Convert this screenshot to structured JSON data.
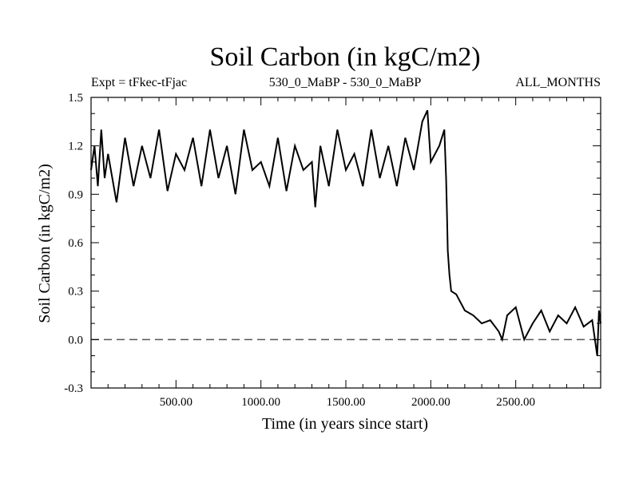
{
  "colors": {
    "line": "#000000",
    "axis": "#000000",
    "zero_line": "#555555",
    "background": "#ffffff"
  },
  "header": {
    "title": "Soil Carbon (in kgC/m2)",
    "expt_label": "Expt = tFkec-tFjac",
    "comparison_label": "530_0_MaBP - 530_0_MaBP",
    "months_label": "ALL_MONTHS"
  },
  "chart_data": {
    "type": "line",
    "title": "Soil Carbon (in kgC/m2)",
    "xlabel": "Time (in years since start)",
    "ylabel": "Soil Carbon (in kgC/m2)",
    "xlim": [
      0,
      3000
    ],
    "ylim": [
      -0.3,
      1.5
    ],
    "x_ticks": [
      500,
      1000,
      1500,
      2000,
      2500
    ],
    "x_tick_labels": [
      "500.00",
      "1000.00",
      "1500.00",
      "2000.00",
      "2500.00"
    ],
    "y_ticks": [
      -0.3,
      0.0,
      0.3,
      0.6,
      0.9,
      1.2,
      1.5
    ],
    "y_tick_labels": [
      "-0.3",
      "0.0",
      "0.3",
      "0.6",
      "0.9",
      "1.2",
      "1.5"
    ],
    "reference_line": {
      "y": 0.0,
      "style": "dashed"
    },
    "grid": false,
    "series": [
      {
        "x": [
          0,
          20,
          40,
          60,
          80,
          100,
          150,
          200,
          250,
          300,
          350,
          400,
          450,
          500,
          550,
          600,
          650,
          700,
          750,
          800,
          850,
          900,
          950,
          1000,
          1050,
          1100,
          1150,
          1200,
          1250,
          1300,
          1320,
          1350,
          1400,
          1450,
          1500,
          1550,
          1600,
          1650,
          1700,
          1750,
          1800,
          1850,
          1900,
          1950,
          1980,
          2000,
          2050,
          2080,
          2090,
          2095,
          2100,
          2110,
          2120,
          2150,
          2200,
          2250,
          2300,
          2350,
          2400,
          2420,
          2450,
          2500,
          2550,
          2600,
          2650,
          2700,
          2750,
          2800,
          2850,
          2900,
          2950,
          2980,
          2990,
          3000
        ],
        "y": [
          1.05,
          1.2,
          0.95,
          1.3,
          1.0,
          1.15,
          0.85,
          1.25,
          0.95,
          1.2,
          1.0,
          1.3,
          0.92,
          1.15,
          1.05,
          1.25,
          0.95,
          1.3,
          1.0,
          1.2,
          0.9,
          1.3,
          1.05,
          1.1,
          0.95,
          1.25,
          0.92,
          1.2,
          1.05,
          1.1,
          0.82,
          1.2,
          0.95,
          1.3,
          1.05,
          1.15,
          0.95,
          1.3,
          1.0,
          1.2,
          0.95,
          1.25,
          1.05,
          1.35,
          1.42,
          1.1,
          1.2,
          1.3,
          1.0,
          0.8,
          0.55,
          0.4,
          0.3,
          0.28,
          0.18,
          0.15,
          0.1,
          0.12,
          0.05,
          0.0,
          0.15,
          0.2,
          0.0,
          0.1,
          0.18,
          0.05,
          0.15,
          0.1,
          0.2,
          0.08,
          0.12,
          -0.1,
          0.18,
          0.1
        ]
      }
    ]
  }
}
